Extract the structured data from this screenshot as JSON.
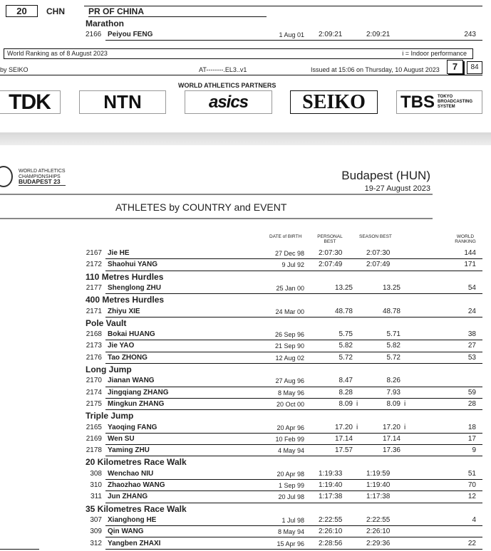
{
  "page1": {
    "country_no": "20",
    "country_code": "CHN",
    "country_name": "PR OF CHINA",
    "event": "Marathon",
    "athlete": {
      "bib": "2166",
      "name": "Peiyou FENG",
      "dob": "1 Aug 01",
      "pb": "2:09:21",
      "sb": "2:09:21",
      "rank": "243"
    },
    "ranking_note": "World Ranking as of 8 August 2023",
    "indoor_note": "i = Indoor performance",
    "footer": {
      "timing": "by SEIKO",
      "code": "AT--------.EL3..v1",
      "issued": "Issued at 15:06 on Thursday, 10 August  2023",
      "page": "7",
      "total": "84"
    },
    "partners_label": "WORLD ATHLETICS PARTNERS",
    "partners": [
      "TDK",
      "NTN",
      "asics",
      "SEIKO",
      "TBS"
    ],
    "tbs_sub": "TOKYO BROADCASTING SYSTEM"
  },
  "page2": {
    "logo_text": [
      "WORLD ATHLETICS",
      "CHAMPIONSHIPS",
      "BUDAPEST 23"
    ],
    "venue": "Budapest (HUN)",
    "dates": "19-27 August 2023",
    "title": "ATHLETES by COUNTRY and EVENT",
    "headers": {
      "dob": "DATE of BIRTH",
      "pb": "PERSONAL BEST",
      "sb": "SEASON BEST",
      "rank": "WORLD RANKING"
    },
    "rows": [
      {
        "bib": "2167",
        "name": "Jie HE",
        "dob": "27 Dec 98",
        "pb": "2:07:30",
        "sb": "2:07:30",
        "rank": "144"
      },
      {
        "bib": "2172",
        "name": "Shaohui YANG",
        "dob": "9 Jul 92",
        "pb": "2:07:49",
        "sb": "2:07:49",
        "rank": "171"
      },
      {
        "event": "110 Metres Hurdles"
      },
      {
        "bib": "2177",
        "name": "Shenglong ZHU",
        "dob": "25 Jan 00",
        "pb": "13.25",
        "sb": "13.25",
        "rank": "54"
      },
      {
        "event": "400 Metres Hurdles"
      },
      {
        "bib": "2171",
        "name": "Zhiyu XIE",
        "dob": "24 Mar 00",
        "pb": "48.78",
        "sb": "48.78",
        "rank": "24"
      },
      {
        "event": "Pole Vault"
      },
      {
        "bib": "2168",
        "name": "Bokai HUANG",
        "dob": "26 Sep 96",
        "pb": "5.75",
        "sb": "5.71",
        "rank": "38"
      },
      {
        "bib": "2173",
        "name": "Jie YAO",
        "dob": "21 Sep 90",
        "pb": "5.82",
        "sb": "5.82",
        "rank": "27"
      },
      {
        "bib": "2176",
        "name": "Tao ZHONG",
        "dob": "12 Aug 02",
        "pb": "5.72",
        "sb": "5.72",
        "rank": "53"
      },
      {
        "event": "Long Jump"
      },
      {
        "bib": "2170",
        "name": "Jianan WANG",
        "dob": "27 Aug 96",
        "pb": "8.47",
        "sb": "8.26",
        "rank": ""
      },
      {
        "bib": "2174",
        "name": "Jingqiang ZHANG",
        "dob": "8 May 96",
        "pb": "8.28",
        "sb": "7.93",
        "rank": "59"
      },
      {
        "bib": "2175",
        "name": "Mingkun ZHANG",
        "dob": "20 Oct 00",
        "pb": "8.09",
        "pb_i": "i",
        "sb": "8.09",
        "sb_i": "i",
        "rank": "28"
      },
      {
        "event": "Triple Jump"
      },
      {
        "bib": "2165",
        "name": "Yaoqing FANG",
        "dob": "20 Apr 96",
        "pb": "17.20",
        "pb_i": "i",
        "sb": "17.20",
        "sb_i": "i",
        "rank": "18"
      },
      {
        "bib": "2169",
        "name": "Wen SU",
        "dob": "10 Feb 99",
        "pb": "17.14",
        "sb": "17.14",
        "rank": "17"
      },
      {
        "bib": "2178",
        "name": "Yaming ZHU",
        "dob": "4 May 94",
        "pb": "17.57",
        "sb": "17.36",
        "rank": "9"
      },
      {
        "event": "20 Kilometres Race Walk"
      },
      {
        "bib": "308",
        "name": "Wenchao NIU",
        "dob": "20 Apr 98",
        "pb": "1:19:33",
        "sb": "1:19:59",
        "rank": "51"
      },
      {
        "bib": "310",
        "name": "Zhaozhao WANG",
        "dob": "1 Sep 99",
        "pb": "1:19:40",
        "sb": "1:19:40",
        "rank": "70"
      },
      {
        "bib": "311",
        "name": "Jun ZHANG",
        "dob": "20 Jul 98",
        "pb": "1:17:38",
        "sb": "1:17:38",
        "rank": "12"
      },
      {
        "event": "35 Kilometres Race Walk"
      },
      {
        "bib": "307",
        "name": "Xianghong HE",
        "dob": "1 Jul 98",
        "pb": "2:22:55",
        "sb": "2:22:55",
        "rank": "4"
      },
      {
        "bib": "309",
        "name": "Qin WANG",
        "dob": "8 May 94",
        "pb": "2:26:10",
        "sb": "2:26:10",
        "rank": ""
      },
      {
        "bib": "312",
        "name": "Yangben ZHAXI",
        "dob": "15 Apr 96",
        "pb": "2:28:56",
        "sb": "2:29:36",
        "rank": "22"
      }
    ]
  }
}
